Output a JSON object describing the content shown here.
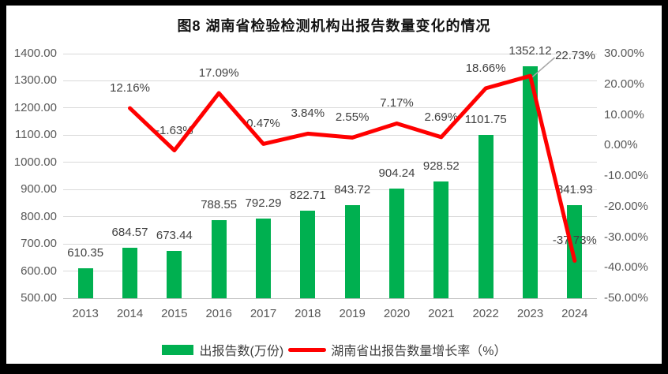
{
  "title": "图8  湖南省检验检测机构出报告数量变化的情况",
  "legend": {
    "bar_label": "出报告数(万份)",
    "line_label": "湖南省出报告数量增长率（%）"
  },
  "colors": {
    "bar": "#00B050",
    "line": "#FF0000",
    "grid": "#D9D9D9",
    "axis_line": "#BFBFBF",
    "axis_text": "#595959",
    "label_text": "#404040",
    "leader": "#A6A6A6",
    "frame": "#000000",
    "background": "#FFFFFF"
  },
  "chart_data": {
    "type": "combo",
    "title": "图8  湖南省检验检测机构出报告数量变化的情况",
    "categories": [
      "2013",
      "2014",
      "2015",
      "2016",
      "2017",
      "2018",
      "2019",
      "2020",
      "2021",
      "2022",
      "2023",
      "2024"
    ],
    "series": [
      {
        "name": "出报告数(万份)",
        "type": "bar",
        "axis": "left",
        "color": "#00B050",
        "values": [
          610.35,
          684.57,
          673.44,
          788.55,
          792.29,
          822.71,
          843.72,
          904.24,
          928.52,
          1101.75,
          1352.12,
          841.93
        ],
        "labels": [
          "610.35",
          "684.57",
          "673.44",
          "788.55",
          "792.29",
          "822.71",
          "843.72",
          "904.24",
          "928.52",
          "1101.75",
          "1352.12",
          "841.93"
        ]
      },
      {
        "name": "湖南省出报告数量增长率（%）",
        "type": "line",
        "axis": "right",
        "color": "#FF0000",
        "values": [
          null,
          12.16,
          -1.63,
          17.09,
          0.47,
          3.84,
          2.55,
          7.17,
          2.69,
          18.66,
          22.73,
          -37.73
        ],
        "labels": [
          null,
          "12.16%",
          "-1.63%",
          "17.09%",
          "0.47%",
          "3.84%",
          "2.55%",
          "7.17%",
          "2.69%",
          "18.66%",
          "22.73%",
          "-37.73%"
        ]
      }
    ],
    "left_axis": {
      "min": 500,
      "max": 1400,
      "step": 100,
      "ticks": [
        "1400.00",
        "1300.00",
        "1200.00",
        "1100.00",
        "1000.00",
        "900.00",
        "800.00",
        "700.00",
        "600.00",
        "500.00"
      ]
    },
    "right_axis": {
      "min": -50,
      "max": 30,
      "step": 10,
      "ticks": [
        "30.00%",
        "20.00%",
        "10.00%",
        "0.00%",
        "-10.00%",
        "-20.00%",
        "-30.00%",
        "-40.00%",
        "-50.00%"
      ]
    },
    "grid": true,
    "legend_position": "bottom"
  }
}
